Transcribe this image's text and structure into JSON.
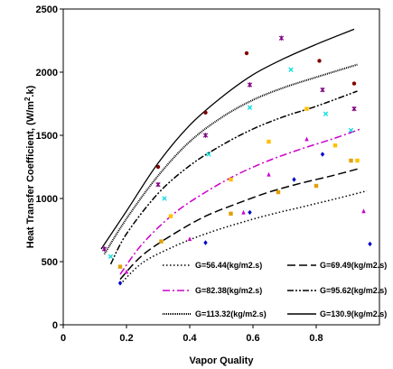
{
  "chart_data": {
    "type": "line",
    "xlabel": "Vapor Quality",
    "ylabel_parts": [
      "Heat Transfer Coefficient, (W/m",
      "2",
      ".k)"
    ],
    "xlim": [
      0,
      1
    ],
    "ylim": [
      0,
      2500
    ],
    "xticks": [
      "0",
      "0.2",
      "0.4",
      "0.6",
      "0.8"
    ],
    "xtick_values": [
      0,
      0.2,
      0.4,
      0.6,
      0.8
    ],
    "yticks": [
      "0",
      "500",
      "1000",
      "1500",
      "2000",
      "2500"
    ],
    "ytick_values": [
      0,
      500,
      1000,
      1500,
      2000,
      2500
    ],
    "legend_position": "bottom-right",
    "series": [
      {
        "name": "G=56.44(kg/m2.s)",
        "style": "dotted",
        "color": "#000000",
        "x": [
          0.18,
          0.25,
          0.35,
          0.45,
          0.55,
          0.65,
          0.75,
          0.85,
          0.96
        ],
        "y": [
          320,
          490,
          620,
          720,
          800,
          870,
          930,
          990,
          1060
        ]
      },
      {
        "name": "G=69.49(kg/m2.s)",
        "style": "longdash",
        "color": "#000000",
        "x": [
          0.18,
          0.25,
          0.35,
          0.45,
          0.55,
          0.65,
          0.75,
          0.85,
          0.94
        ],
        "y": [
          360,
          550,
          720,
          860,
          960,
          1050,
          1120,
          1180,
          1240
        ]
      },
      {
        "name": "G=82.38(kg/m2.s)",
        "style": "dashdot",
        "color": "#cc00cc",
        "x": [
          0.18,
          0.25,
          0.35,
          0.45,
          0.55,
          0.65,
          0.75,
          0.85,
          0.94
        ],
        "y": [
          400,
          640,
          880,
          1050,
          1190,
          1300,
          1390,
          1470,
          1550
        ]
      },
      {
        "name": "G=95.62(kg/m2.s)",
        "style": "dashdotdot",
        "color": "#000000",
        "x": [
          0.15,
          0.2,
          0.3,
          0.4,
          0.5,
          0.6,
          0.7,
          0.8,
          0.93
        ],
        "y": [
          480,
          720,
          1040,
          1260,
          1420,
          1550,
          1650,
          1730,
          1850
        ]
      },
      {
        "name": "G=113.32(kg/m2.s)",
        "style": "wavy",
        "color": "#000000",
        "x": [
          0.13,
          0.2,
          0.3,
          0.4,
          0.5,
          0.6,
          0.7,
          0.8,
          0.93
        ],
        "y": [
          560,
          840,
          1180,
          1450,
          1640,
          1780,
          1880,
          1960,
          2060
        ]
      },
      {
        "name": "G=130.9(kg/m2.s)",
        "style": "solid",
        "color": "#000000",
        "x": [
          0.12,
          0.2,
          0.3,
          0.4,
          0.5,
          0.6,
          0.7,
          0.8,
          0.92
        ],
        "y": [
          600,
          900,
          1280,
          1580,
          1800,
          1980,
          2110,
          2220,
          2340
        ]
      }
    ],
    "markers": [
      {
        "symbol": "diamond",
        "color": "#0000cc",
        "points": [
          [
            0.18,
            330
          ],
          [
            0.45,
            650
          ],
          [
            0.59,
            890
          ],
          [
            0.73,
            1150
          ],
          [
            0.82,
            1350
          ],
          [
            0.97,
            640
          ]
        ]
      },
      {
        "symbol": "square",
        "color": "#e0a000",
        "points": [
          [
            0.18,
            460
          ],
          [
            0.31,
            660
          ],
          [
            0.53,
            880
          ],
          [
            0.68,
            1050
          ],
          [
            0.8,
            1100
          ],
          [
            0.91,
            1300
          ]
        ]
      },
      {
        "symbol": "triangle",
        "color": "#cc00cc",
        "points": [
          [
            0.2,
            420
          ],
          [
            0.4,
            680
          ],
          [
            0.57,
            890
          ],
          [
            0.65,
            1190
          ],
          [
            0.77,
            1470
          ],
          [
            0.95,
            900
          ]
        ]
      },
      {
        "symbol": "x",
        "color": "#00dddd",
        "points": [
          [
            0.15,
            540
          ],
          [
            0.32,
            1000
          ],
          [
            0.46,
            1350
          ],
          [
            0.59,
            1720
          ],
          [
            0.72,
            2020
          ],
          [
            0.83,
            1670
          ],
          [
            0.91,
            1540
          ]
        ]
      },
      {
        "symbol": "star",
        "color": "#800080",
        "points": [
          [
            0.13,
            600
          ],
          [
            0.3,
            1110
          ],
          [
            0.45,
            1500
          ],
          [
            0.59,
            1900
          ],
          [
            0.69,
            2270
          ],
          [
            0.82,
            1860
          ],
          [
            0.92,
            1710
          ]
        ]
      },
      {
        "symbol": "circle",
        "color": "#800000",
        "points": [
          [
            0.3,
            1250
          ],
          [
            0.45,
            1680
          ],
          [
            0.58,
            2150
          ],
          [
            0.81,
            2090
          ],
          [
            0.92,
            1910
          ]
        ]
      },
      {
        "symbol": "square",
        "color": "#ffc000",
        "points": [
          [
            0.34,
            860
          ],
          [
            0.53,
            1150
          ],
          [
            0.65,
            1450
          ],
          [
            0.77,
            1710
          ],
          [
            0.86,
            1420
          ],
          [
            0.93,
            1300
          ]
        ]
      }
    ]
  }
}
